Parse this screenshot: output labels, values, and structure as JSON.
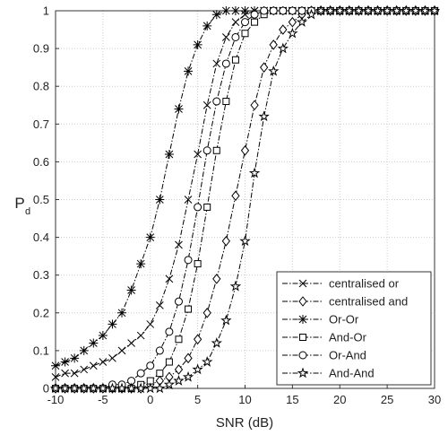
{
  "chart_data": {
    "type": "line",
    "x_label": "SNR (dB)",
    "y_label": {
      "main": "P",
      "sub": "d"
    },
    "x": [
      -10,
      -9,
      -8,
      -7,
      -6,
      -5,
      -4,
      -3,
      -2,
      -1,
      0,
      1,
      2,
      3,
      4,
      5,
      6,
      7,
      8,
      9,
      10,
      11,
      12,
      13,
      14,
      15,
      16,
      17,
      18,
      19,
      20,
      21,
      22,
      23,
      24,
      25,
      26,
      27,
      28,
      29,
      30
    ],
    "xlim": [
      -10,
      30
    ],
    "xticks": [
      -10,
      -5,
      0,
      5,
      10,
      15,
      20,
      25,
      30
    ],
    "ylim": [
      0,
      1
    ],
    "yticks": [
      0,
      0.1,
      0.2,
      0.3,
      0.4,
      0.5,
      0.6,
      0.7,
      0.8,
      0.9,
      1
    ],
    "grid": true,
    "legend": "lower right",
    "series": [
      {
        "name": "centralised or",
        "color": "#000000",
        "marker": "x",
        "values": [
          0.03,
          0.04,
          0.04,
          0.05,
          0.06,
          0.07,
          0.08,
          0.1,
          0.12,
          0.14,
          0.17,
          0.22,
          0.29,
          0.38,
          0.5,
          0.62,
          0.75,
          0.86,
          0.93,
          0.97,
          0.99,
          1,
          1,
          1,
          1,
          1,
          1,
          1,
          1,
          1,
          1,
          1,
          1,
          1,
          1,
          1,
          1,
          1,
          1,
          1,
          1
        ]
      },
      {
        "name": "centralised and",
        "color": "#000000",
        "marker": "diamond",
        "values": [
          0,
          0,
          0,
          0,
          0,
          0,
          0,
          0,
          0,
          0,
          0.01,
          0.02,
          0.03,
          0.05,
          0.08,
          0.13,
          0.2,
          0.29,
          0.39,
          0.51,
          0.63,
          0.75,
          0.85,
          0.91,
          0.95,
          0.97,
          0.99,
          1,
          1,
          1,
          1,
          1,
          1,
          1,
          1,
          1,
          1,
          1,
          1,
          1,
          1
        ]
      },
      {
        "name": "Or-Or",
        "color": "#000000",
        "marker": "asterisk",
        "values": [
          0.06,
          0.07,
          0.08,
          0.1,
          0.12,
          0.14,
          0.17,
          0.2,
          0.26,
          0.33,
          0.4,
          0.5,
          0.62,
          0.74,
          0.84,
          0.91,
          0.96,
          0.99,
          1,
          1,
          1,
          1,
          1,
          1,
          1,
          1,
          1,
          1,
          1,
          1,
          1,
          1,
          1,
          1,
          1,
          1,
          1,
          1,
          1,
          1,
          1
        ]
      },
      {
        "name": "And-Or",
        "color": "#000000",
        "marker": "square",
        "values": [
          0,
          0,
          0,
          0,
          0,
          0,
          0,
          0,
          0,
          0.01,
          0.02,
          0.04,
          0.07,
          0.13,
          0.21,
          0.33,
          0.48,
          0.63,
          0.76,
          0.87,
          0.94,
          0.97,
          0.99,
          1,
          1,
          1,
          1,
          1,
          1,
          1,
          1,
          1,
          1,
          1,
          1,
          1,
          1,
          1,
          1,
          1,
          1
        ]
      },
      {
        "name": "Or-And",
        "color": "#000000",
        "marker": "circle",
        "values": [
          0,
          0,
          0,
          0,
          0,
          0,
          0.01,
          0.01,
          0.02,
          0.04,
          0.06,
          0.1,
          0.15,
          0.23,
          0.34,
          0.48,
          0.63,
          0.76,
          0.86,
          0.93,
          0.97,
          0.99,
          1,
          1,
          1,
          1,
          1,
          1,
          1,
          1,
          1,
          1,
          1,
          1,
          1,
          1,
          1,
          1,
          1,
          1,
          1
        ]
      },
      {
        "name": "And-And",
        "color": "#000000",
        "marker": "star",
        "values": [
          0,
          0,
          0,
          0,
          0,
          0,
          0,
          0,
          0,
          0,
          0,
          0,
          0.01,
          0.02,
          0.03,
          0.05,
          0.07,
          0.12,
          0.18,
          0.27,
          0.39,
          0.57,
          0.72,
          0.84,
          0.9,
          0.94,
          0.97,
          0.99,
          1,
          1,
          1,
          1,
          1,
          1,
          1,
          1,
          1,
          1,
          1,
          1,
          1
        ]
      }
    ]
  }
}
